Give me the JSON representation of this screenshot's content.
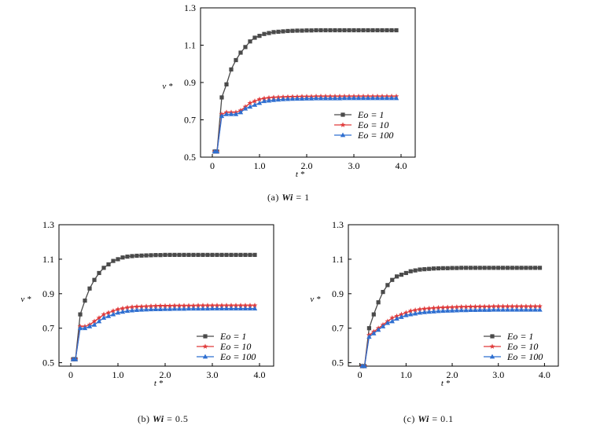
{
  "chart_data": [
    {
      "type": "line",
      "caption": {
        "prefix": "(a) ",
        "param": "Wi",
        "value": " = 1"
      },
      "xlabel": "t *",
      "ylabel": "v *",
      "xlim": [
        -0.25,
        4.3
      ],
      "ylim": [
        0.5,
        1.3
      ],
      "xticks": [
        0,
        1.0,
        2.0,
        3.0,
        4.0
      ],
      "xtick_labels": [
        "0",
        "1.0",
        "2.0",
        "3.0",
        "4.0"
      ],
      "yticks": [
        0.5,
        0.7,
        0.9,
        1.1,
        1.3
      ],
      "ytick_labels": [
        "0.5",
        "0.7",
        "0.9",
        "1.1",
        "1.3"
      ],
      "legend_position": "bottom-right",
      "series": [
        {
          "name": "Eo = 1",
          "color": "#4a4a4a",
          "marker": "square",
          "x": [
            0.05,
            0.1,
            0.2,
            0.3,
            0.4,
            0.5,
            0.6,
            0.7,
            0.8,
            0.9,
            1.0,
            1.1,
            1.2,
            1.3,
            1.4,
            1.5,
            1.6,
            1.7,
            1.8,
            1.9,
            2.0,
            2.1,
            2.2,
            2.3,
            2.4,
            2.5,
            2.6,
            2.7,
            2.8,
            2.9,
            3.0,
            3.1,
            3.2,
            3.3,
            3.4,
            3.5,
            3.6,
            3.7,
            3.8,
            3.9
          ],
          "y": [
            0.53,
            0.53,
            0.82,
            0.89,
            0.97,
            1.02,
            1.06,
            1.09,
            1.12,
            1.14,
            1.15,
            1.16,
            1.165,
            1.17,
            1.172,
            1.174,
            1.176,
            1.177,
            1.178,
            1.178,
            1.179,
            1.179,
            1.18,
            1.18,
            1.18,
            1.18,
            1.18,
            1.18,
            1.18,
            1.18,
            1.18,
            1.18,
            1.18,
            1.18,
            1.18,
            1.18,
            1.18,
            1.18,
            1.18,
            1.18
          ]
        },
        {
          "name": "Eo = 10",
          "color": "#e03a3a",
          "marker": "star",
          "x": [
            0.05,
            0.1,
            0.2,
            0.3,
            0.4,
            0.5,
            0.6,
            0.7,
            0.8,
            0.9,
            1.0,
            1.1,
            1.2,
            1.3,
            1.4,
            1.5,
            1.6,
            1.7,
            1.8,
            1.9,
            2.0,
            2.1,
            2.2,
            2.3,
            2.4,
            2.5,
            2.6,
            2.7,
            2.8,
            2.9,
            3.0,
            3.1,
            3.2,
            3.3,
            3.4,
            3.5,
            3.6,
            3.7,
            3.8,
            3.9
          ],
          "y": [
            0.53,
            0.53,
            0.73,
            0.74,
            0.74,
            0.74,
            0.75,
            0.77,
            0.79,
            0.8,
            0.81,
            0.815,
            0.818,
            0.82,
            0.821,
            0.822,
            0.823,
            0.824,
            0.824,
            0.825,
            0.825,
            0.825,
            0.826,
            0.826,
            0.826,
            0.826,
            0.826,
            0.826,
            0.826,
            0.826,
            0.826,
            0.826,
            0.826,
            0.826,
            0.826,
            0.826,
            0.826,
            0.826,
            0.826,
            0.826
          ]
        },
        {
          "name": "Eo = 100",
          "color": "#2f6fd0",
          "marker": "triangle",
          "x": [
            0.05,
            0.1,
            0.2,
            0.3,
            0.4,
            0.5,
            0.6,
            0.7,
            0.8,
            0.9,
            1.0,
            1.1,
            1.2,
            1.3,
            1.4,
            1.5,
            1.6,
            1.7,
            1.8,
            1.9,
            2.0,
            2.1,
            2.2,
            2.3,
            2.4,
            2.5,
            2.6,
            2.7,
            2.8,
            2.9,
            3.0,
            3.1,
            3.2,
            3.3,
            3.4,
            3.5,
            3.6,
            3.7,
            3.8,
            3.9
          ],
          "y": [
            0.53,
            0.53,
            0.72,
            0.73,
            0.73,
            0.73,
            0.74,
            0.76,
            0.77,
            0.78,
            0.79,
            0.8,
            0.803,
            0.806,
            0.808,
            0.81,
            0.811,
            0.812,
            0.813,
            0.813,
            0.814,
            0.814,
            0.815,
            0.815,
            0.815,
            0.815,
            0.815,
            0.815,
            0.816,
            0.816,
            0.816,
            0.816,
            0.816,
            0.816,
            0.816,
            0.816,
            0.816,
            0.816,
            0.816,
            0.816
          ]
        }
      ]
    },
    {
      "type": "line",
      "caption": {
        "prefix": "(b) ",
        "param": "Wi",
        "value": " = 0.5"
      },
      "xlabel": "t *",
      "ylabel": "v *",
      "xlim": [
        -0.25,
        4.3
      ],
      "ylim": [
        0.48,
        1.3
      ],
      "xticks": [
        0,
        1.0,
        2.0,
        3.0,
        4.0
      ],
      "xtick_labels": [
        "0",
        "1.0",
        "2.0",
        "3.0",
        "4.0"
      ],
      "yticks": [
        0.5,
        0.7,
        0.9,
        1.1,
        1.3
      ],
      "ytick_labels": [
        "0.5",
        "0.7",
        "0.9",
        "1.1",
        "1.3"
      ],
      "legend_position": "bottom-right",
      "series": [
        {
          "name": "Eo = 1",
          "color": "#4a4a4a",
          "marker": "square",
          "x": [
            0.05,
            0.1,
            0.2,
            0.3,
            0.4,
            0.5,
            0.6,
            0.7,
            0.8,
            0.9,
            1.0,
            1.1,
            1.2,
            1.3,
            1.4,
            1.5,
            1.6,
            1.7,
            1.8,
            1.9,
            2.0,
            2.1,
            2.2,
            2.3,
            2.4,
            2.5,
            2.6,
            2.7,
            2.8,
            2.9,
            3.0,
            3.1,
            3.2,
            3.3,
            3.4,
            3.5,
            3.6,
            3.7,
            3.8,
            3.9
          ],
          "y": [
            0.52,
            0.52,
            0.78,
            0.86,
            0.93,
            0.98,
            1.02,
            1.05,
            1.07,
            1.09,
            1.1,
            1.11,
            1.115,
            1.118,
            1.12,
            1.121,
            1.122,
            1.123,
            1.124,
            1.124,
            1.125,
            1.125,
            1.125,
            1.125,
            1.125,
            1.125,
            1.125,
            1.125,
            1.125,
            1.125,
            1.125,
            1.125,
            1.125,
            1.125,
            1.125,
            1.125,
            1.125,
            1.125,
            1.125,
            1.125
          ]
        },
        {
          "name": "Eo = 10",
          "color": "#e03a3a",
          "marker": "star",
          "x": [
            0.05,
            0.1,
            0.2,
            0.3,
            0.4,
            0.5,
            0.6,
            0.7,
            0.8,
            0.9,
            1.0,
            1.1,
            1.2,
            1.3,
            1.4,
            1.5,
            1.6,
            1.7,
            1.8,
            1.9,
            2.0,
            2.1,
            2.2,
            2.3,
            2.4,
            2.5,
            2.6,
            2.7,
            2.8,
            2.9,
            3.0,
            3.1,
            3.2,
            3.3,
            3.4,
            3.5,
            3.6,
            3.7,
            3.8,
            3.9
          ],
          "y": [
            0.52,
            0.52,
            0.71,
            0.71,
            0.72,
            0.74,
            0.76,
            0.78,
            0.79,
            0.8,
            0.81,
            0.815,
            0.82,
            0.823,
            0.825,
            0.826,
            0.827,
            0.828,
            0.829,
            0.83,
            0.83,
            0.83,
            0.831,
            0.831,
            0.831,
            0.831,
            0.831,
            0.832,
            0.832,
            0.832,
            0.832,
            0.832,
            0.832,
            0.832,
            0.832,
            0.832,
            0.832,
            0.832,
            0.832,
            0.832
          ]
        },
        {
          "name": "Eo = 100",
          "color": "#2f6fd0",
          "marker": "triangle",
          "x": [
            0.05,
            0.1,
            0.2,
            0.3,
            0.4,
            0.5,
            0.6,
            0.7,
            0.8,
            0.9,
            1.0,
            1.1,
            1.2,
            1.3,
            1.4,
            1.5,
            1.6,
            1.7,
            1.8,
            1.9,
            2.0,
            2.1,
            2.2,
            2.3,
            2.4,
            2.5,
            2.6,
            2.7,
            2.8,
            2.9,
            3.0,
            3.1,
            3.2,
            3.3,
            3.4,
            3.5,
            3.6,
            3.7,
            3.8,
            3.9
          ],
          "y": [
            0.52,
            0.52,
            0.7,
            0.7,
            0.71,
            0.72,
            0.74,
            0.76,
            0.77,
            0.78,
            0.79,
            0.795,
            0.8,
            0.803,
            0.805,
            0.807,
            0.808,
            0.809,
            0.81,
            0.81,
            0.811,
            0.811,
            0.812,
            0.812,
            0.812,
            0.813,
            0.813,
            0.813,
            0.813,
            0.813,
            0.814,
            0.814,
            0.814,
            0.814,
            0.814,
            0.814,
            0.814,
            0.814,
            0.814,
            0.814
          ]
        }
      ]
    },
    {
      "type": "line",
      "caption": {
        "prefix": "(c) ",
        "param": "Wi",
        "value": " = 0.1"
      },
      "xlabel": "t *",
      "ylabel": "v *",
      "xlim": [
        -0.25,
        4.3
      ],
      "ylim": [
        0.48,
        1.3
      ],
      "xticks": [
        0,
        1.0,
        2.0,
        3.0,
        4.0
      ],
      "xtick_labels": [
        "0",
        "1.0",
        "2.0",
        "3.0",
        "4.0"
      ],
      "yticks": [
        0.5,
        0.7,
        0.9,
        1.1,
        1.3
      ],
      "ytick_labels": [
        "0.5",
        "0.7",
        "0.9",
        "1.1",
        "1.3"
      ],
      "legend_position": "bottom-right",
      "series": [
        {
          "name": "Eo = 1",
          "color": "#4a4a4a",
          "marker": "square",
          "x": [
            0.05,
            0.1,
            0.2,
            0.3,
            0.4,
            0.5,
            0.6,
            0.7,
            0.8,
            0.9,
            1.0,
            1.1,
            1.2,
            1.3,
            1.4,
            1.5,
            1.6,
            1.7,
            1.8,
            1.9,
            2.0,
            2.1,
            2.2,
            2.3,
            2.4,
            2.5,
            2.6,
            2.7,
            2.8,
            2.9,
            3.0,
            3.1,
            3.2,
            3.3,
            3.4,
            3.5,
            3.6,
            3.7,
            3.8,
            3.9
          ],
          "y": [
            0.48,
            0.48,
            0.7,
            0.78,
            0.85,
            0.91,
            0.95,
            0.98,
            1.0,
            1.01,
            1.02,
            1.03,
            1.035,
            1.04,
            1.042,
            1.044,
            1.046,
            1.047,
            1.048,
            1.048,
            1.049,
            1.049,
            1.05,
            1.05,
            1.05,
            1.05,
            1.05,
            1.05,
            1.05,
            1.05,
            1.05,
            1.05,
            1.05,
            1.05,
            1.05,
            1.05,
            1.05,
            1.05,
            1.05,
            1.05
          ]
        },
        {
          "name": "Eo = 10",
          "color": "#e03a3a",
          "marker": "star",
          "x": [
            0.05,
            0.1,
            0.2,
            0.3,
            0.4,
            0.5,
            0.6,
            0.7,
            0.8,
            0.9,
            1.0,
            1.1,
            1.2,
            1.3,
            1.4,
            1.5,
            1.6,
            1.7,
            1.8,
            1.9,
            2.0,
            2.1,
            2.2,
            2.3,
            2.4,
            2.5,
            2.6,
            2.7,
            2.8,
            2.9,
            3.0,
            3.1,
            3.2,
            3.3,
            3.4,
            3.5,
            3.6,
            3.7,
            3.8,
            3.9
          ],
          "y": [
            0.48,
            0.48,
            0.66,
            0.68,
            0.7,
            0.72,
            0.74,
            0.76,
            0.77,
            0.78,
            0.79,
            0.8,
            0.805,
            0.81,
            0.813,
            0.815,
            0.817,
            0.819,
            0.82,
            0.821,
            0.822,
            0.823,
            0.824,
            0.824,
            0.825,
            0.825,
            0.826,
            0.826,
            0.826,
            0.827,
            0.827,
            0.827,
            0.827,
            0.827,
            0.827,
            0.827,
            0.827,
            0.827,
            0.827,
            0.827
          ]
        },
        {
          "name": "Eo = 100",
          "color": "#2f6fd0",
          "marker": "triangle",
          "x": [
            0.05,
            0.1,
            0.2,
            0.3,
            0.4,
            0.5,
            0.6,
            0.7,
            0.8,
            0.9,
            1.0,
            1.1,
            1.2,
            1.3,
            1.4,
            1.5,
            1.6,
            1.7,
            1.8,
            1.9,
            2.0,
            2.1,
            2.2,
            2.3,
            2.4,
            2.5,
            2.6,
            2.7,
            2.8,
            2.9,
            3.0,
            3.1,
            3.2,
            3.3,
            3.4,
            3.5,
            3.6,
            3.7,
            3.8,
            3.9
          ],
          "y": [
            0.48,
            0.48,
            0.65,
            0.67,
            0.69,
            0.71,
            0.73,
            0.74,
            0.755,
            0.765,
            0.775,
            0.78,
            0.785,
            0.79,
            0.793,
            0.795,
            0.797,
            0.799,
            0.8,
            0.801,
            0.802,
            0.803,
            0.804,
            0.804,
            0.805,
            0.805,
            0.806,
            0.806,
            0.806,
            0.807,
            0.807,
            0.807,
            0.807,
            0.807,
            0.807,
            0.807,
            0.807,
            0.807,
            0.807,
            0.807
          ]
        }
      ]
    }
  ]
}
